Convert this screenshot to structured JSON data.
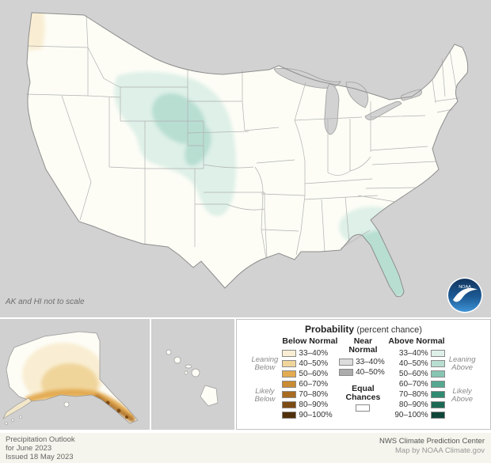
{
  "map": {
    "note": "AK and HI not to scale"
  },
  "logo": {
    "text": "NOAA"
  },
  "legend": {
    "title_bold": "Probability",
    "title_suffix": "(percent chance)",
    "below": {
      "header": "Below Normal",
      "leaning": "Leaning Below",
      "likely": "Likely Below",
      "rows": [
        {
          "label": "33–40%",
          "color": "#f9eed3"
        },
        {
          "label": "40–50%",
          "color": "#f0d59b"
        },
        {
          "label": "50–60%",
          "color": "#e3ab52"
        },
        {
          "label": "60–70%",
          "color": "#c98b33"
        },
        {
          "label": "70–80%",
          "color": "#a76b22"
        },
        {
          "label": "80–90%",
          "color": "#7d4b14"
        },
        {
          "label": "90–100%",
          "color": "#502f0a"
        }
      ]
    },
    "near": {
      "header": "Near Normal",
      "equal": "Equal Chances",
      "equal_color": "#ffffff",
      "rows": [
        {
          "label": "33–40%",
          "color": "#dcdcdc"
        },
        {
          "label": "40–50%",
          "color": "#acacac"
        }
      ]
    },
    "above": {
      "header": "Above Normal",
      "leaning": "Leaning Above",
      "likely": "Likely Above",
      "rows": [
        {
          "label": "33–40%",
          "color": "#def0e8"
        },
        {
          "label": "40–50%",
          "color": "#b8ded2"
        },
        {
          "label": "50–60%",
          "color": "#86c5b2"
        },
        {
          "label": "60–70%",
          "color": "#55a890"
        },
        {
          "label": "70–80%",
          "color": "#2f8a71"
        },
        {
          "label": "80–90%",
          "color": "#1b6954"
        },
        {
          "label": "90–100%",
          "color": "#0d4639"
        }
      ]
    }
  },
  "footer": {
    "left_line1": "Precipitation Outlook",
    "left_line2": "for June 2023",
    "left_line3": "Issued 18 May 2023",
    "right_line1": "NWS Climate Prediction Center",
    "right_line2": "Map by NOAA Climate.gov"
  }
}
